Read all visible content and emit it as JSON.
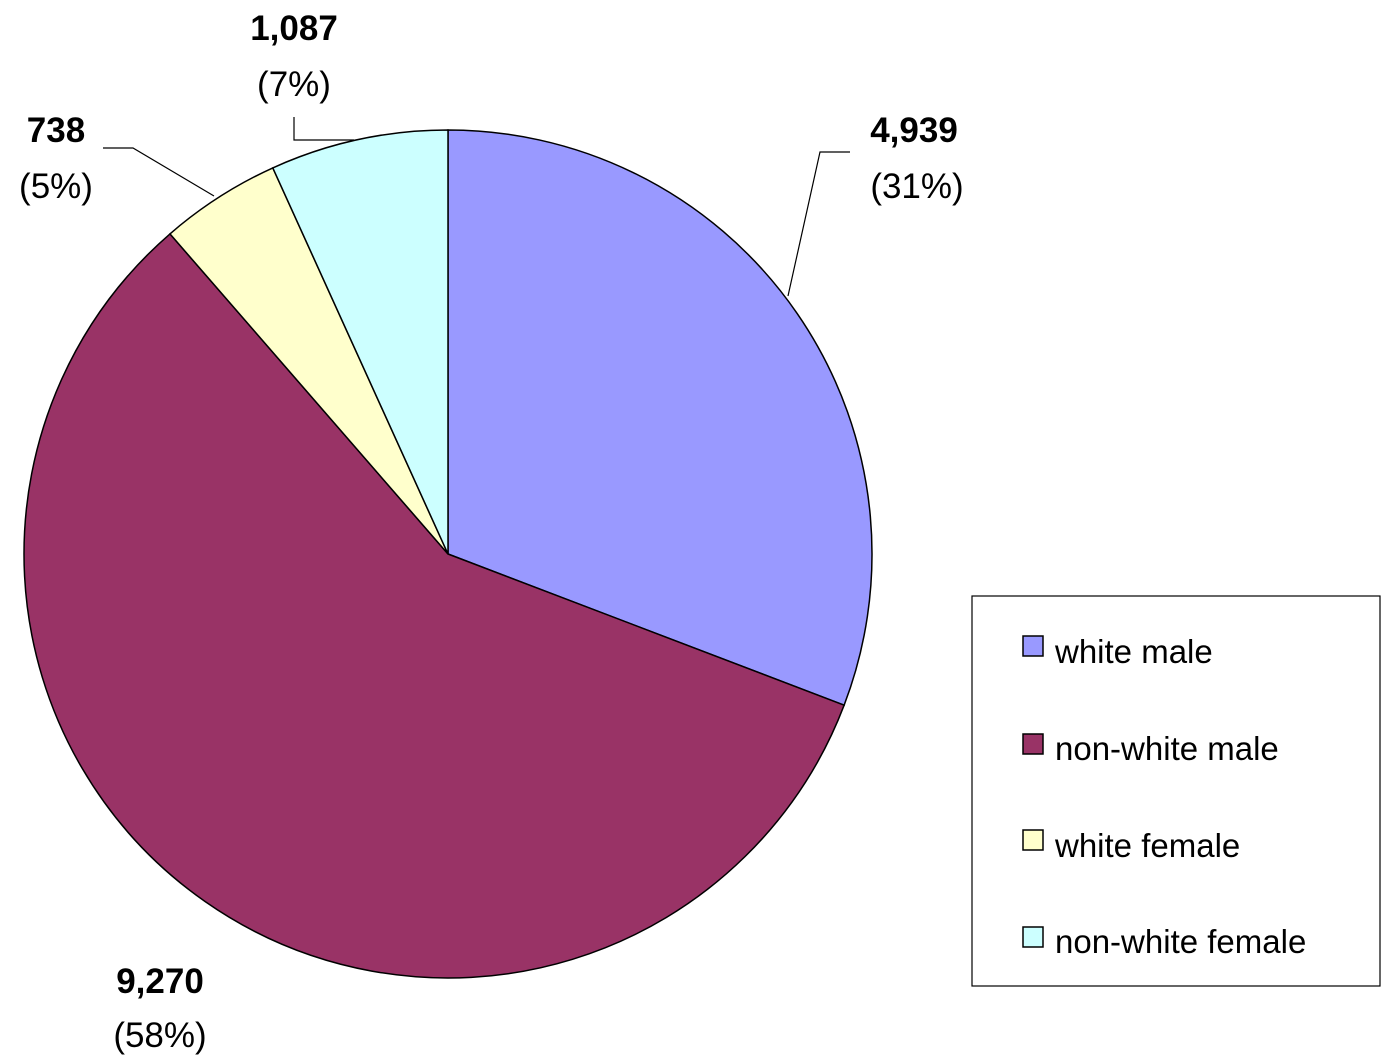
{
  "chart_data": {
    "type": "pie",
    "start_angle_deg": 0,
    "direction": "clockwise",
    "slices": [
      {
        "name": "white male",
        "value": 4939,
        "label": "4,939",
        "pct_label": "(31%)",
        "color": "#9999FF"
      },
      {
        "name": "non-white male",
        "value": 9270,
        "label": "9,270",
        "pct_label": "(58%)",
        "color": "#993366"
      },
      {
        "name": "white female",
        "value": 738,
        "label": "738",
        "pct_label": "(5%)",
        "color": "#FFFFCC"
      },
      {
        "name": "non-white female",
        "value": 1087,
        "label": "1,087",
        "pct_label": "(7%)",
        "color": "#CCFFFF"
      }
    ],
    "legend_position": "right"
  }
}
